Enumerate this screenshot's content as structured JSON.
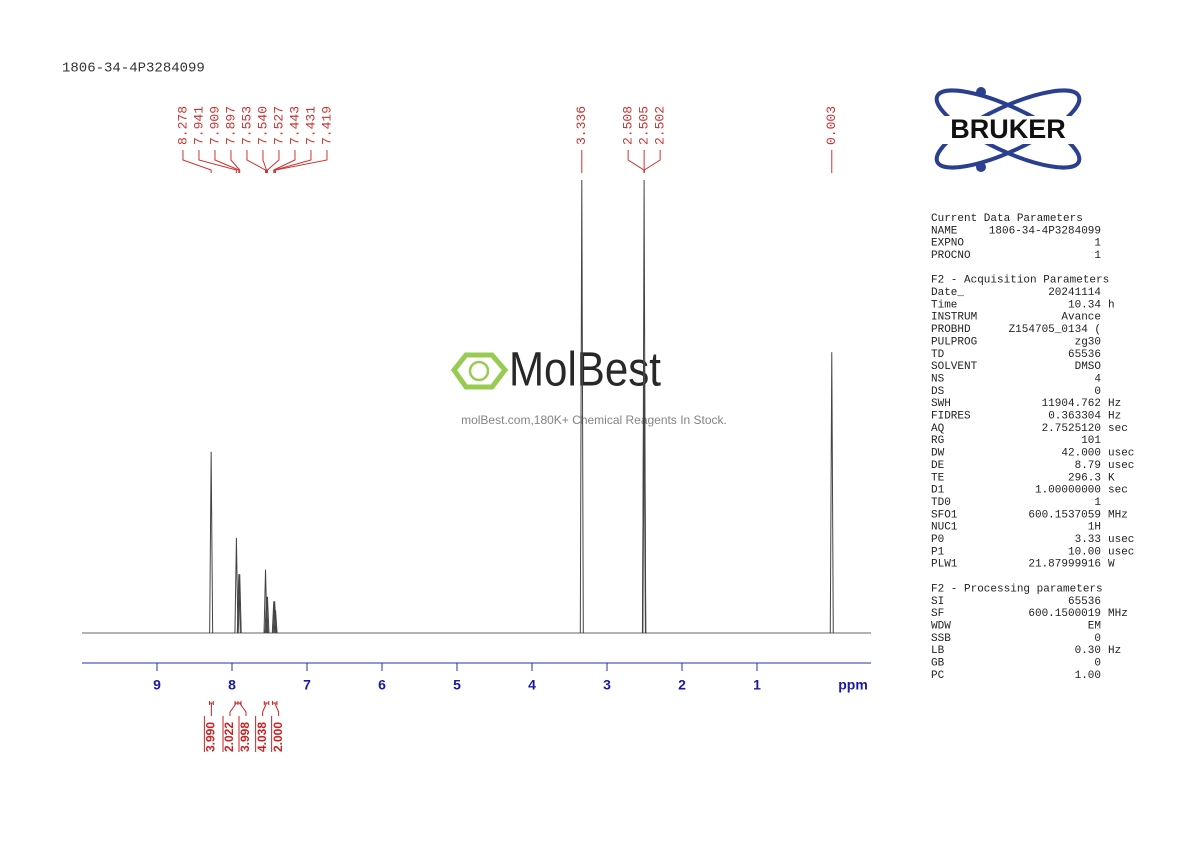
{
  "header": {
    "title": "1806-34-4P3284099"
  },
  "chart_data": {
    "type": "nmr",
    "x_label": "ppm",
    "xlim": [
      10,
      -0.52
    ],
    "xticks": [
      9,
      8,
      7,
      6,
      5,
      4,
      3,
      2,
      1
    ],
    "ylim": [
      0,
      100
    ],
    "peak_x": [
      8.278,
      7.941,
      7.909,
      7.897,
      7.553,
      7.54,
      7.527,
      7.443,
      7.431,
      7.419,
      3.336,
      2.508,
      2.505,
      2.502,
      0.003
    ],
    "peak_labels": [
      "8.278",
      "7.941",
      "7.909",
      "7.897",
      "7.553",
      "7.540",
      "7.527",
      "7.443",
      "7.431",
      "7.419",
      "3.336",
      "2.508",
      "2.505",
      "2.502",
      "0.003"
    ],
    "values": [
      40,
      21,
      13,
      13,
      14,
      8,
      8,
      7,
      7,
      5,
      100,
      60,
      100,
      60,
      62
    ],
    "integrals": [
      {
        "from": 8.3,
        "to": 8.25,
        "value": 3.99,
        "label": "3.990"
      },
      {
        "from": 7.96,
        "to": 7.92,
        "value": 2.022,
        "label": "2.022"
      },
      {
        "from": 7.92,
        "to": 7.88,
        "value": 3.998,
        "label": "3.998"
      },
      {
        "from": 7.57,
        "to": 7.51,
        "value": 4.038,
        "label": "4.038"
      },
      {
        "from": 7.46,
        "to": 7.4,
        "value": 2,
        "label": "2.000"
      }
    ]
  },
  "watermark": {
    "brand": "MolBest",
    "tagline": "molBest.com,180K+ Chemical Reagents In Stock."
  },
  "logo": {
    "text": "BRUKER"
  },
  "parameters": [
    {
      "title": "Current Data Parameters",
      "rows": [
        [
          "NAME",
          "1806-34-4P3284099",
          ""
        ],
        [
          "EXPNO",
          "1",
          ""
        ],
        [
          "PROCNO",
          "1",
          ""
        ]
      ]
    },
    {
      "title": "F2 - Acquisition Parameters",
      "rows": [
        [
          "Date_",
          "20241114",
          ""
        ],
        [
          "Time",
          "10.34",
          "h"
        ],
        [
          "INSTRUM",
          "Avance",
          ""
        ],
        [
          "PROBHD",
          "Z154705_0134 (",
          ""
        ],
        [
          "PULPROG",
          "zg30",
          ""
        ],
        [
          "TD",
          "65536",
          ""
        ],
        [
          "SOLVENT",
          "DMSO",
          ""
        ],
        [
          "NS",
          "4",
          ""
        ],
        [
          "DS",
          "0",
          ""
        ],
        [
          "SWH",
          "11904.762",
          "Hz"
        ],
        [
          "FIDRES",
          "0.363304",
          "Hz"
        ],
        [
          "AQ",
          "2.7525120",
          "sec"
        ],
        [
          "RG",
          "101",
          ""
        ],
        [
          "DW",
          "42.000",
          "usec"
        ],
        [
          "DE",
          "8.79",
          "usec"
        ],
        [
          "TE",
          "296.3",
          "K"
        ],
        [
          "D1",
          "1.00000000",
          "sec"
        ],
        [
          "TD0",
          "1",
          ""
        ],
        [
          "SFO1",
          "600.1537059",
          "MHz"
        ],
        [
          "NUC1",
          "1H",
          ""
        ],
        [
          "P0",
          "3.33",
          "usec"
        ],
        [
          "P1",
          "10.00",
          "usec"
        ],
        [
          "PLW1",
          "21.87999916",
          "W"
        ]
      ]
    },
    {
      "title": "F2 - Processing parameters",
      "rows": [
        [
          "SI",
          "65536",
          ""
        ],
        [
          "SF",
          "600.1500019",
          "MHz"
        ],
        [
          "WDW",
          "EM",
          ""
        ],
        [
          "SSB",
          "0",
          ""
        ],
        [
          "LB",
          "0.30",
          "Hz"
        ],
        [
          "GB",
          "0",
          ""
        ],
        [
          "PC",
          "1.00",
          ""
        ]
      ]
    }
  ]
}
